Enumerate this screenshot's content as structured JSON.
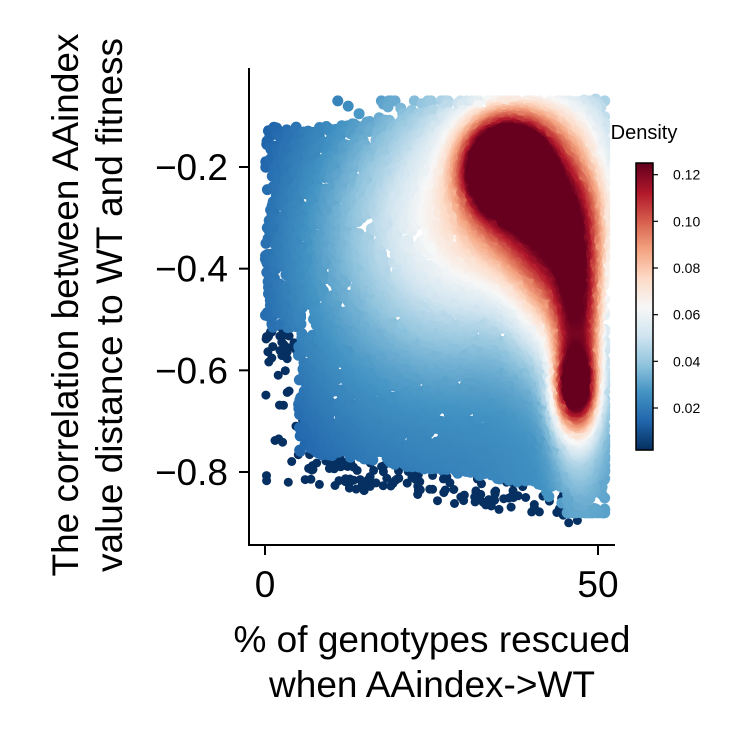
{
  "chart_data": {
    "type": "scatter",
    "subtype": "density-colored scatter",
    "xlabel_lines": [
      "% of genotypes rescued",
      "when AAindex->WT"
    ],
    "ylabel_lines": [
      "The correlation between AAindex",
      "value distance to WT and fitness"
    ],
    "xlim": [
      -1,
      52.5
    ],
    "ylim": [
      -0.935,
      -0.02
    ],
    "x_ticks": [
      0,
      50
    ],
    "x_tick_labels": [
      "0",
      "50"
    ],
    "y_ticks": [
      -0.8,
      -0.6,
      -0.4,
      -0.2
    ],
    "y_tick_labels": [
      "−0.8",
      "−0.6",
      "−0.4",
      "−0.2"
    ],
    "point_count_approx": 30000,
    "point_cloud": {
      "x_range": [
        0,
        51
      ],
      "y_range": [
        -0.9,
        -0.06
      ],
      "density_peaks": [
        {
          "x": 36,
          "y": -0.2,
          "density": 0.125
        },
        {
          "x": 46,
          "y": -0.63,
          "density": 0.095
        },
        {
          "x": 47,
          "y": -0.53,
          "density": 0.085
        }
      ]
    },
    "colorbar": {
      "label": "Density",
      "range": [
        0.002,
        0.125
      ],
      "ticks": [
        0.02,
        0.04,
        0.06,
        0.08,
        0.1,
        0.12
      ],
      "tick_labels": [
        "0.02",
        "0.04",
        "0.06",
        "0.08",
        "0.10",
        "0.12"
      ],
      "colormap": "RdBu_r",
      "colors": [
        "#053061",
        "#2166ac",
        "#4393c3",
        "#92c5de",
        "#d1e5f0",
        "#f7f7f7",
        "#fddbc7",
        "#f4a582",
        "#d6604d",
        "#b2182b",
        "#67001f"
      ]
    }
  }
}
